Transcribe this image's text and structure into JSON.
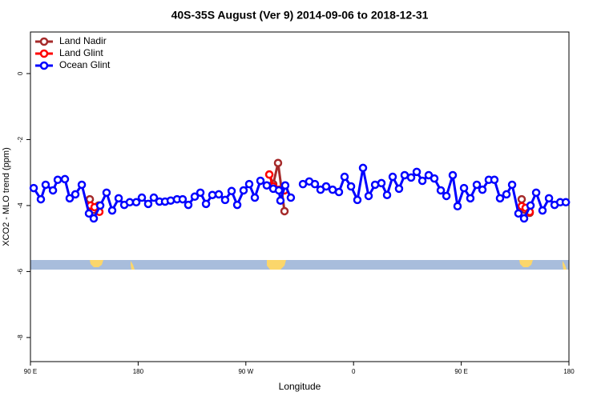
{
  "chart_data": {
    "type": "line",
    "title": "40S-35S August (Ver 9)   2014-09-06 to 2018-12-31",
    "x_label": "Longitude",
    "y_label": "XCO2 - MLO trend (ppm)",
    "xlim": [
      90,
      540
    ],
    "ylim": [
      -8.73,
      1.26
    ],
    "xticks": [
      {
        "value": 90,
        "label": "90 E"
      },
      {
        "value": 180,
        "label": "180"
      },
      {
        "value": 270,
        "label": "90 W"
      },
      {
        "value": 360,
        "label": "0"
      },
      {
        "value": 450,
        "label": "90 E"
      },
      {
        "value": 540,
        "label": "180"
      }
    ],
    "yticks": [
      0,
      -2,
      -4,
      -6,
      -8
    ],
    "legend": "top-left",
    "series": [
      {
        "name": "Land Nadir",
        "color": "#a52a2a",
        "x": [
          139.6,
          142.9,
          146.9,
          null,
          289.6,
          292.9,
          296.9,
          302.3,
          null,
          500.5,
          503.2,
          507.2
        ],
        "values": [
          -3.81,
          -4.13,
          -4.0,
          null,
          -3.06,
          -3.35,
          -2.71,
          -4.17,
          null,
          -3.81,
          -4.13,
          -4.22
        ]
      },
      {
        "name": "Land Glint",
        "color": "#ff0000",
        "x": [
          140.2,
          143.6,
          147.6,
          null,
          289.6,
          292.9,
          297.6,
          302.3,
          null,
          500.5,
          503.8,
          507.2
        ],
        "values": [
          -4.0,
          -4.05,
          -4.19,
          null,
          -3.06,
          -3.42,
          -3.52,
          -3.54,
          null,
          -4.02,
          -4.07,
          -4.19
        ]
      },
      {
        "name": "Ocean Glint",
        "color": "#0000ff",
        "x": [
          92.7,
          98.7,
          102.7,
          108.8,
          112.8,
          118.8,
          122.8,
          127.5,
          132.9,
          138.9,
          142.9,
          148.3,
          153.6,
          158.3,
          163.7,
          168.4,
          173.0,
          178.4,
          183.1,
          188.4,
          193.1,
          197.8,
          202.5,
          207.2,
          212.5,
          217.2,
          221.9,
          227.3,
          232.0,
          236.7,
          242.0,
          247.4,
          252.7,
          258.1,
          262.8,
          268.1,
          272.8,
          277.5,
          282.2,
          287.5,
          292.9,
          297.6,
          298.9,
          302.9,
          307.6,
          null,
          317.7,
          323.0,
          327.7,
          332.4,
          337.1,
          342.5,
          347.8,
          352.5,
          357.9,
          363.2,
          367.9,
          372.6,
          378.0,
          383.3,
          388.0,
          392.7,
          398.0,
          402.7,
          408.1,
          412.8,
          417.5,
          422.8,
          427.5,
          432.9,
          437.6,
          442.9,
          446.9,
          452.3,
          457.6,
          463.0,
          467.7,
          473.0,
          477.7,
          482.4,
          487.8,
          492.5,
          497.8,
          502.5,
          507.9,
          512.6,
          517.9,
          523.3,
          528.0,
          532.7,
          537.4
        ],
        "values": [
          -3.47,
          -3.81,
          -3.37,
          -3.54,
          -3.22,
          -3.2,
          -3.78,
          -3.66,
          -3.37,
          -4.24,
          -4.39,
          -4.0,
          -3.61,
          -4.15,
          -3.78,
          -3.98,
          -3.9,
          -3.9,
          -3.76,
          -3.95,
          -3.76,
          -3.88,
          -3.88,
          -3.85,
          -3.81,
          -3.81,
          -3.98,
          -3.73,
          -3.61,
          -3.95,
          -3.68,
          -3.66,
          -3.83,
          -3.56,
          -3.98,
          -3.54,
          -3.35,
          -3.76,
          -3.25,
          -3.39,
          -3.49,
          -3.54,
          -3.85,
          -3.39,
          -3.76,
          null,
          -3.35,
          -3.27,
          -3.35,
          -3.52,
          -3.42,
          -3.52,
          -3.59,
          -3.13,
          -3.42,
          -3.83,
          -2.86,
          -3.71,
          -3.37,
          -3.32,
          -3.68,
          -3.13,
          -3.49,
          -3.08,
          -3.15,
          -2.98,
          -3.25,
          -3.08,
          -3.18,
          -3.54,
          -3.71,
          -3.08,
          -4.02,
          -3.47,
          -3.78,
          -3.37,
          -3.52,
          -3.22,
          -3.22,
          -3.78,
          -3.66,
          -3.37,
          -4.24,
          -4.39,
          -4.0,
          -3.61,
          -4.15,
          -3.78,
          -3.98,
          -3.9,
          -3.9
        ]
      }
    ]
  }
}
